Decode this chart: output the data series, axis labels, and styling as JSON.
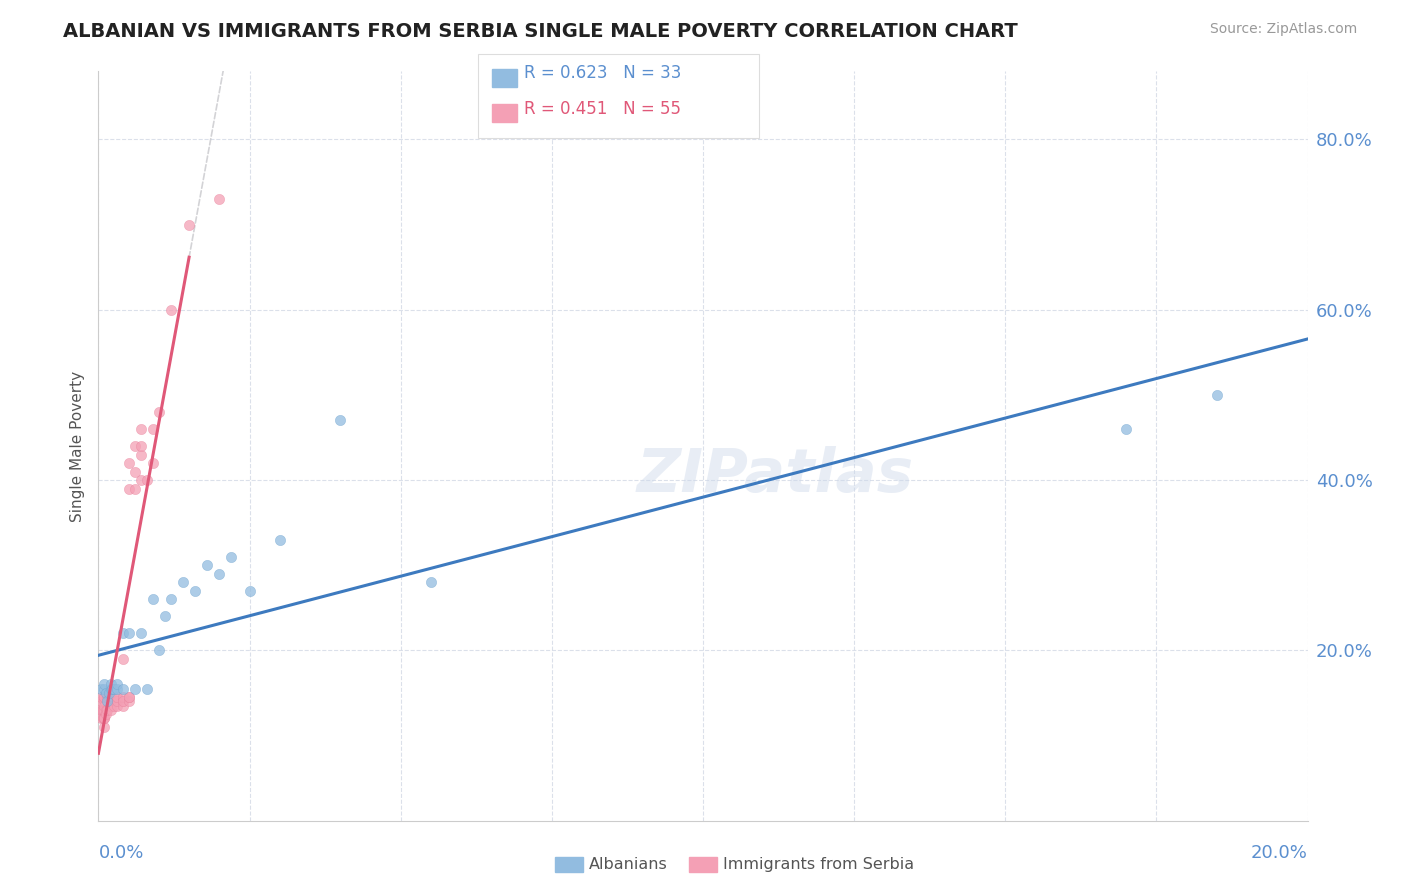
{
  "title": "ALBANIAN VS IMMIGRANTS FROM SERBIA SINGLE MALE POVERTY CORRELATION CHART",
  "source": "Source: ZipAtlas.com",
  "ylabel": "Single Male Poverty",
  "xlim": [
    0.0,
    0.2
  ],
  "ylim": [
    0.0,
    0.88
  ],
  "legend1_R": "0.623",
  "legend1_N": "33",
  "legend2_R": "0.451",
  "legend2_N": "55",
  "color_blue": "#92bce0",
  "color_pink": "#f4a0b5",
  "color_blue_line": "#3d7abf",
  "color_pink_line": "#e05878",
  "color_dashed": "#c8c8cc",
  "watermark": "ZIPatlas",
  "albanians_x": [
    0.0005,
    0.001,
    0.001,
    0.0012,
    0.0015,
    0.0018,
    0.002,
    0.002,
    0.0022,
    0.0025,
    0.003,
    0.003,
    0.004,
    0.004,
    0.005,
    0.006,
    0.007,
    0.008,
    0.009,
    0.01,
    0.011,
    0.012,
    0.014,
    0.016,
    0.018,
    0.02,
    0.022,
    0.025,
    0.03,
    0.04,
    0.055,
    0.17,
    0.185
  ],
  "albanians_y": [
    0.155,
    0.155,
    0.16,
    0.15,
    0.14,
    0.15,
    0.155,
    0.16,
    0.155,
    0.155,
    0.155,
    0.16,
    0.155,
    0.22,
    0.22,
    0.155,
    0.22,
    0.155,
    0.26,
    0.2,
    0.24,
    0.26,
    0.28,
    0.27,
    0.3,
    0.29,
    0.31,
    0.27,
    0.33,
    0.47,
    0.28,
    0.46,
    0.5
  ],
  "serbia_x": [
    0.0003,
    0.0004,
    0.0005,
    0.0005,
    0.0006,
    0.0007,
    0.0008,
    0.001,
    0.001,
    0.001,
    0.001,
    0.001,
    0.001,
    0.001,
    0.001,
    0.0012,
    0.0012,
    0.0015,
    0.0015,
    0.0018,
    0.002,
    0.002,
    0.002,
    0.002,
    0.002,
    0.0025,
    0.003,
    0.003,
    0.003,
    0.003,
    0.003,
    0.004,
    0.004,
    0.004,
    0.004,
    0.004,
    0.005,
    0.005,
    0.005,
    0.005,
    0.005,
    0.006,
    0.006,
    0.006,
    0.007,
    0.007,
    0.007,
    0.007,
    0.008,
    0.009,
    0.009,
    0.01,
    0.012,
    0.015,
    0.02
  ],
  "serbia_y": [
    0.13,
    0.14,
    0.12,
    0.145,
    0.13,
    0.12,
    0.13,
    0.11,
    0.12,
    0.12,
    0.13,
    0.14,
    0.145,
    0.135,
    0.145,
    0.13,
    0.125,
    0.13,
    0.145,
    0.145,
    0.145,
    0.14,
    0.14,
    0.135,
    0.13,
    0.135,
    0.14,
    0.135,
    0.145,
    0.14,
    0.145,
    0.14,
    0.135,
    0.145,
    0.14,
    0.19,
    0.14,
    0.145,
    0.145,
    0.39,
    0.42,
    0.39,
    0.41,
    0.44,
    0.4,
    0.43,
    0.44,
    0.46,
    0.4,
    0.42,
    0.46,
    0.48,
    0.6,
    0.7,
    0.73
  ]
}
